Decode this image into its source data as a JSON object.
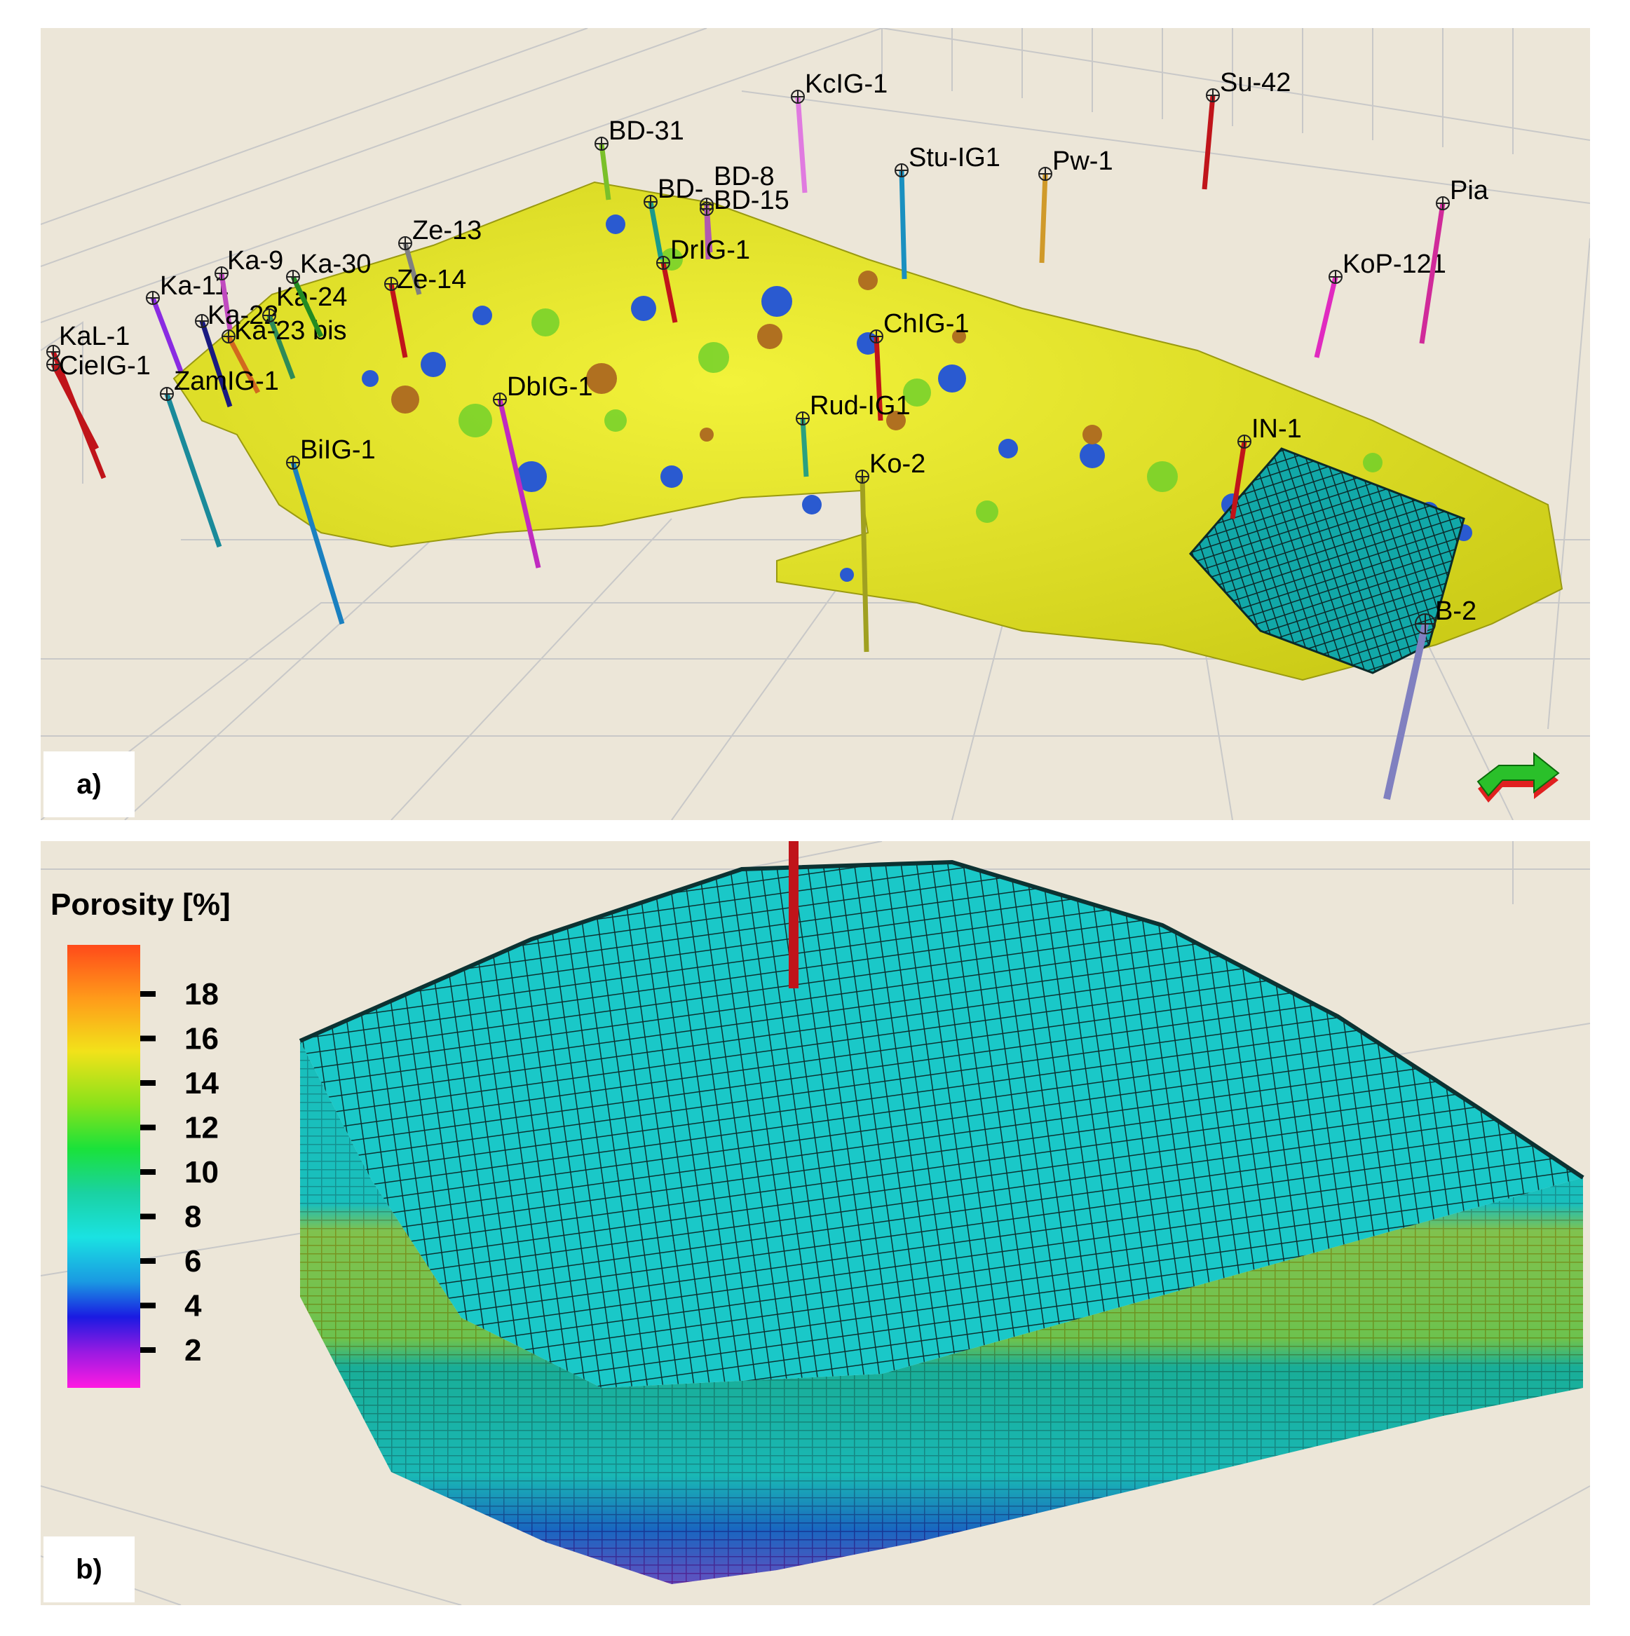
{
  "panel_a": {
    "label": "a)",
    "wells": [
      {
        "name": "KaL-1",
        "color": "#c0141a"
      },
      {
        "name": "CieIG-1",
        "color": "#c0141a"
      },
      {
        "name": "Ka-11",
        "color": "#8a2be2"
      },
      {
        "name": "Ka-9",
        "color": "#c04ac0"
      },
      {
        "name": "Ka-22",
        "color": "#1a1a80"
      },
      {
        "name": "Ka-24",
        "color": "#2e8b57"
      },
      {
        "name": "Ka-23 bis",
        "color": "#d2691e"
      },
      {
        "name": "Ka-30",
        "color": "#228b22"
      },
      {
        "name": "Ze-13",
        "color": "#808080"
      },
      {
        "name": "Ze-14",
        "color": "#c0141a"
      },
      {
        "name": "ZamIG-1",
        "color": "#1a8a9a"
      },
      {
        "name": "BiIG-1",
        "color": "#1a80c0"
      },
      {
        "name": "BD-31",
        "color": "#7ac02a"
      },
      {
        "name": "BD-8",
        "color": "#b05ab0"
      },
      {
        "name": "BD-15",
        "color": "#b05ab0"
      },
      {
        "name": "BD-",
        "color": "#1a9a8a"
      },
      {
        "name": "DrIG-1",
        "color": "#c0141a"
      },
      {
        "name": "DbIG-1",
        "color": "#c02ac0"
      },
      {
        "name": "KcIG-1",
        "color": "#e07ae0"
      },
      {
        "name": "Stu-IG1",
        "color": "#1a90c0"
      },
      {
        "name": "Pw-1",
        "color": "#d09a2a"
      },
      {
        "name": "ChIG-1",
        "color": "#c0141a"
      },
      {
        "name": "Rud-IG1",
        "color": "#2aa080"
      },
      {
        "name": "Ko-2",
        "color": "#a0a020"
      },
      {
        "name": "Su-42",
        "color": "#c0141a"
      },
      {
        "name": "KoP-121",
        "color": "#e02ac0"
      },
      {
        "name": "Pia",
        "color": "#d02a9a"
      },
      {
        "name": "IN-1",
        "color": "#c0141a"
      },
      {
        "name": "B-2",
        "color": "#8080c0"
      }
    ]
  },
  "panel_b": {
    "label": "b)",
    "legend": {
      "title": "Porosity [%]",
      "ticks": [
        "18",
        "16",
        "14",
        "12",
        "10",
        "8",
        "6",
        "4",
        "2"
      ]
    }
  },
  "colors": {
    "background": "#ece6d8",
    "surface": "#e6e61a",
    "grid_cell": "#12c2c2"
  }
}
